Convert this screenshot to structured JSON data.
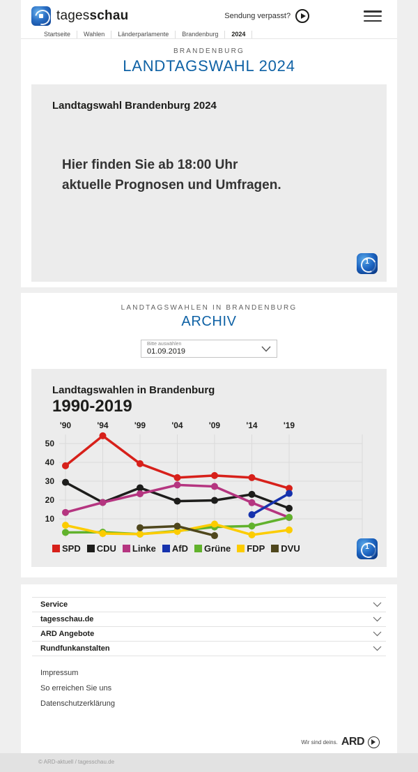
{
  "header": {
    "brand_prefix": "tages",
    "brand_suffix": "schau",
    "sendung_link": "Sendung verpasst?",
    "breadcrumb": [
      "Startseite",
      "Wahlen",
      "Länderparlamente",
      "Brandenburg",
      "2024"
    ]
  },
  "hero": {
    "kicker": "BRANDENBURG",
    "title": "LANDTAGSWAHL 2024",
    "teaser_title": "Landtagswahl Brandenburg 2024",
    "teaser_line1": "Hier finden Sie ab 18:00 Uhr",
    "teaser_line2": "aktuelle Prognosen und Umfragen."
  },
  "archive": {
    "kicker": "LANDTAGSWAHLEN IN BRANDENBURG",
    "title": "ARCHIV",
    "select_label": "Bitte auswählen",
    "select_value": "01.09.2019"
  },
  "chart_data": {
    "type": "line",
    "title": "Landtagswahlen in Brandenburg",
    "subtitle": "1990-2019",
    "x_years": [
      1990,
      1994,
      1999,
      2004,
      2009,
      2014,
      2019
    ],
    "x_tick_labels": [
      "'90",
      "'94",
      "'99",
      "'04",
      "'09",
      "'14",
      "'19"
    ],
    "y_ticks": [
      50,
      40,
      30,
      20,
      10
    ],
    "ylim": [
      0,
      57
    ],
    "grid": true,
    "legend_position": "bottom",
    "unit": "percent",
    "series": [
      {
        "name": "SPD",
        "color": "#d7201a",
        "values": [
          38.2,
          54.1,
          39.3,
          31.9,
          33.0,
          31.9,
          26.2
        ]
      },
      {
        "name": "CDU",
        "color": "#1d1d1b",
        "values": [
          29.4,
          18.7,
          26.5,
          19.4,
          19.8,
          23.0,
          15.6
        ]
      },
      {
        "name": "Linke",
        "color": "#b53580",
        "values": [
          13.4,
          18.7,
          23.3,
          28.0,
          27.2,
          18.6,
          10.7
        ]
      },
      {
        "name": "AfD",
        "color": "#1632ad",
        "values": [
          null,
          null,
          null,
          null,
          null,
          12.2,
          23.5
        ]
      },
      {
        "name": "Grüne",
        "color": "#61b22c",
        "values": [
          2.8,
          2.9,
          1.9,
          3.6,
          5.7,
          6.2,
          10.8
        ]
      },
      {
        "name": "FDP",
        "color": "#fccc00",
        "values": [
          6.6,
          2.2,
          1.9,
          3.3,
          7.2,
          1.5,
          4.1
        ]
      },
      {
        "name": "DVU",
        "color": "#4f471d",
        "values": [
          null,
          null,
          5.3,
          6.1,
          1.1,
          null,
          null
        ]
      }
    ]
  },
  "footer": {
    "accordion": [
      {
        "label": "Service"
      },
      {
        "label": "tagesschau.de"
      },
      {
        "label": "ARD Angebote"
      },
      {
        "label": "Rundfunkanstalten"
      }
    ],
    "links": [
      "Impressum",
      "So erreichen Sie uns",
      "Datenschutzerklärung"
    ],
    "ard_claim": "Wir sind deins.",
    "ard_brand": "ARD",
    "copyright": "© ARD-aktuell / tagesschau.de"
  }
}
